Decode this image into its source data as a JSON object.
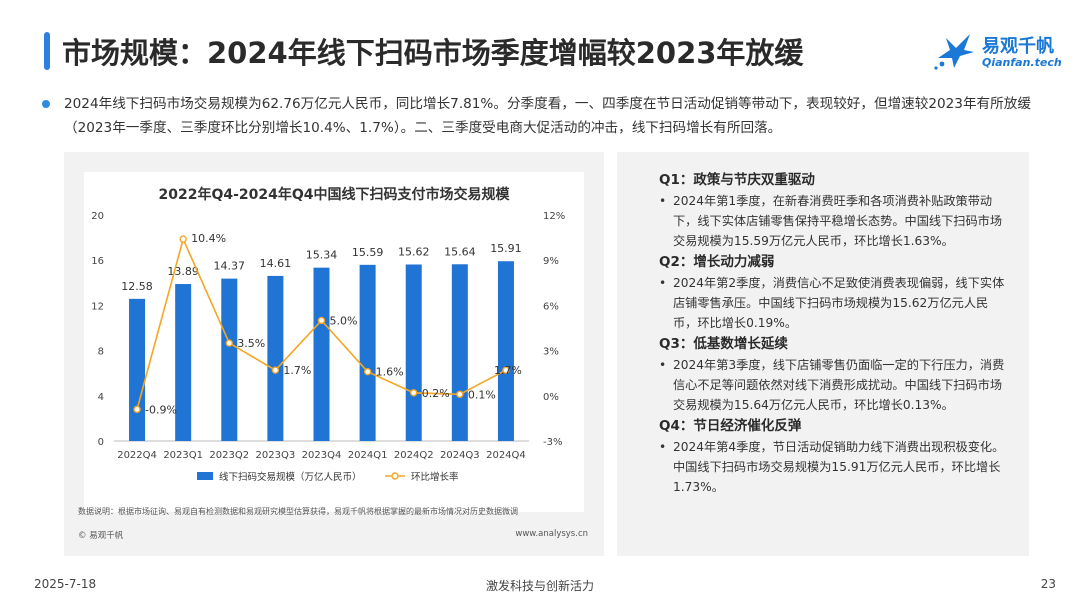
{
  "header": {
    "title": "市场规模：2024年线下扫码市场季度增幅较2023年放缓"
  },
  "brand": {
    "name": "易观千帆",
    "sub": "Qianfan.tech",
    "color": "#1a78d6"
  },
  "intro": {
    "text": "2024年线下扫码市场交易规模为62.76万亿元人民币，同比增长7.81%。分季度看，一、四季度在节日活动促销等带动下，表现较好，但增速较2023年有所放缓（2023年一季度、三季度环比分别增长10.4%、1.7%）。二、三季度受电商大促活动的冲击，线下扫码增长有所回落。"
  },
  "chart_data": {
    "type": "bar",
    "title": "2022年Q4-2024年Q4中国线下扫码支付市场交易规模",
    "categories": [
      "2022Q4",
      "2023Q1",
      "2023Q2",
      "2023Q3",
      "2023Q4",
      "2024Q1",
      "2024Q2",
      "2024Q3",
      "2024Q4"
    ],
    "series": [
      {
        "name": "线下扫码交易规模（万亿人民币）",
        "kind": "bar",
        "axis": "left",
        "color": "#1f74d4",
        "values": [
          12.58,
          13.89,
          14.37,
          14.61,
          15.34,
          15.59,
          15.62,
          15.64,
          15.91
        ],
        "labels": [
          "12.58",
          "13.89",
          "14.37",
          "14.61",
          "15.34",
          "15.59",
          "15.62",
          "15.64",
          "15.91"
        ]
      },
      {
        "name": "环比增长率",
        "kind": "line",
        "axis": "right",
        "color": "#f5a623",
        "values": [
          -0.9,
          10.4,
          3.5,
          1.7,
          5.0,
          1.6,
          0.2,
          0.1,
          1.7
        ],
        "labels": [
          "-0.9%",
          "10.4%",
          "3.5%",
          "1.7%",
          "5.0%",
          "1.6%",
          "0.2%",
          "0.1%",
          "1.7%"
        ]
      }
    ],
    "ylim": [
      0,
      20
    ],
    "yticks": [
      "0",
      "4",
      "8",
      "12",
      "16",
      "20"
    ],
    "y2lim": [
      -3,
      12
    ],
    "y2ticks": [
      "-3%",
      "0%",
      "3%",
      "6%",
      "9%",
      "12%"
    ],
    "legend": "bottom",
    "grid": false
  },
  "chart_notes": {
    "note": "数据说明：根据市场征询、易观自有检测数据和易观研究模型估算获得，易观千帆将根据掌握的最新市场情况对历史数据微调",
    "source": "© 易观千帆",
    "url": "www.analysys.cn"
  },
  "analysis": [
    {
      "title": "Q1：政策与节庆双重驱动",
      "text": "2024年第1季度，在新春消费旺季和各项消费补贴政策带动下，线下实体店铺零售保持平稳增长态势。中国线下扫码市场交易规模为15.59万亿元人民币，环比增长1.63%。"
    },
    {
      "title": "Q2：增长动力减弱",
      "text": "2024年第2季度，消费信心不足致使消费表现偏弱，线下实体店铺零售承压。中国线下扫码市场规模为15.62万亿元人民币，环比增长0.19%。"
    },
    {
      "title": "Q3：低基数增长延续",
      "text": "2024年第3季度，线下店铺零售仍面临一定的下行压力，消费信心不足等问题依然对线下消费形成扰动。中国线下扫码市场交易规模为15.64万亿元人民币，环比增长0.13%。"
    },
    {
      "title": "Q4：节日经济催化反弹",
      "text": "2024年第4季度，节日活动促销助力线下消费出现积极变化。中国线下扫码市场交易规模为15.91万亿元人民币，环比增长1.73%。"
    }
  ],
  "footer": {
    "date": "2025-7-18",
    "slogan": "激发科技与创新活力",
    "page": "23"
  }
}
